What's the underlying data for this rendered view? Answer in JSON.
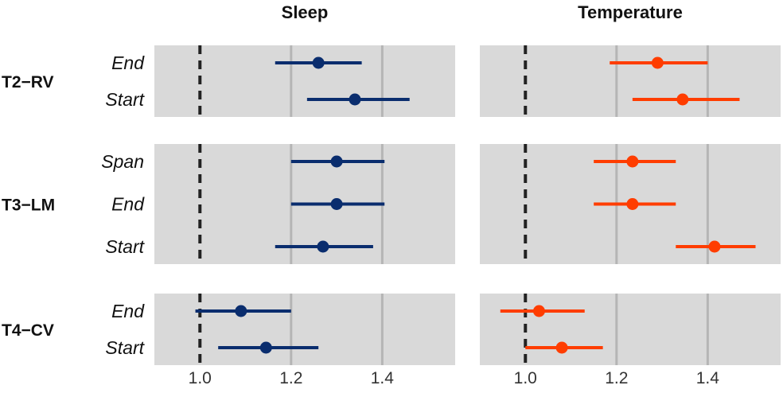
{
  "chart_data": {
    "type": "forest",
    "columns": [
      {
        "title": "Sleep",
        "color": "#0a2d6e"
      },
      {
        "title": "Temperature",
        "color": "#ff3d00"
      }
    ],
    "xlim": [
      0.9,
      1.56
    ],
    "x_ticks": [
      "1.0",
      "1.2",
      "1.4"
    ],
    "x_tick_values": [
      1.0,
      1.2,
      1.4
    ],
    "reference_line": 1.0,
    "grid": true,
    "panel_background": "#d9d9d9",
    "rows": [
      {
        "label": "T2−RV",
        "categories": [
          "End",
          "Start"
        ],
        "Sleep": [
          {
            "category": "End",
            "estimate": 1.26,
            "low": 1.165,
            "high": 1.355
          },
          {
            "category": "Start",
            "estimate": 1.34,
            "low": 1.235,
            "high": 1.46
          }
        ],
        "Temperature": [
          {
            "category": "End",
            "estimate": 1.29,
            "low": 1.185,
            "high": 1.4
          },
          {
            "category": "Start",
            "estimate": 1.345,
            "low": 1.235,
            "high": 1.47
          }
        ]
      },
      {
        "label": "T3−LM",
        "categories": [
          "Span",
          "End",
          "Start"
        ],
        "Sleep": [
          {
            "category": "Span",
            "estimate": 1.3,
            "low": 1.2,
            "high": 1.405
          },
          {
            "category": "End",
            "estimate": 1.3,
            "low": 1.2,
            "high": 1.405
          },
          {
            "category": "Start",
            "estimate": 1.27,
            "low": 1.165,
            "high": 1.38
          }
        ],
        "Temperature": [
          {
            "category": "Span",
            "estimate": 1.235,
            "low": 1.15,
            "high": 1.33
          },
          {
            "category": "End",
            "estimate": 1.235,
            "low": 1.15,
            "high": 1.33
          },
          {
            "category": "Start",
            "estimate": 1.415,
            "low": 1.33,
            "high": 1.505
          }
        ]
      },
      {
        "label": "T4−CV",
        "categories": [
          "End",
          "Start"
        ],
        "Sleep": [
          {
            "category": "End",
            "estimate": 1.09,
            "low": 0.99,
            "high": 1.2
          },
          {
            "category": "Start",
            "estimate": 1.145,
            "low": 1.04,
            "high": 1.26
          }
        ],
        "Temperature": [
          {
            "category": "End",
            "estimate": 1.03,
            "low": 0.945,
            "high": 1.13
          },
          {
            "category": "Start",
            "estimate": 1.08,
            "low": 1.0,
            "high": 1.17
          }
        ]
      }
    ]
  }
}
